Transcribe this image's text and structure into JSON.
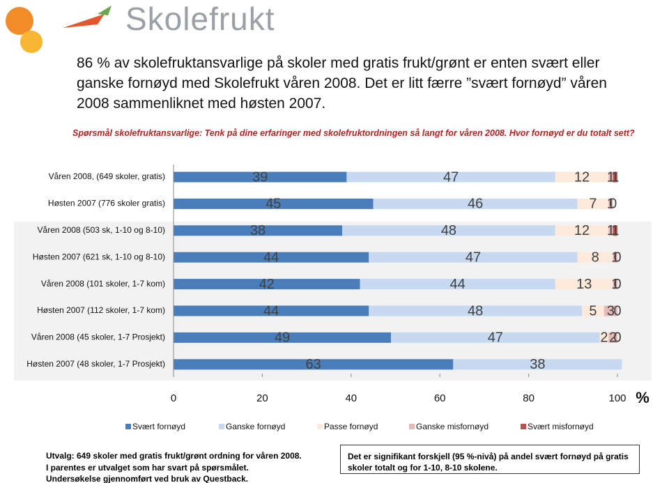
{
  "header": {
    "logo": "Skolefrukt"
  },
  "headline": "86 % av skolefruktansvarlige på skoler med gratis frukt/grønt er enten svært eller ganske fornøyd med Skolefrukt våren 2008. Det er litt færre ”svært fornøyd” våren 2008 sammenliknet med høsten 2007.",
  "question": "Spørsmål skolefruktansvarlige: Tenk på dine erfaringer med skolefruktordningen så langt for våren 2008. Hvor fornøyd er du totalt sett?",
  "chart_data": {
    "type": "stacked-barh",
    "categories": [
      "Våren 2008, (649 skoler, gratis)",
      "Høsten 2007 (776 skoler gratis)",
      "Våren 2008 (503 sk, 1-10 og 8-10)",
      "Høsten 2007 (621 sk, 1-10 og 8-10)",
      "Våren 2008 (101 skoler, 1-7 kom)",
      "Høsten 2007 (112 skoler, 1-7 kom)",
      "Våren 2008 (45 skoler, 1-7 Prosjekt)",
      "Høsten 2007 (48 skoler, 1-7 Prosjekt)"
    ],
    "series": [
      {
        "name": "Svært fornøyd",
        "color": "#4a7ebb",
        "values": [
          39,
          45,
          38,
          44,
          42,
          44,
          49,
          63
        ]
      },
      {
        "name": "Ganske fornøyd",
        "color": "#c6d9f1",
        "values": [
          47,
          46,
          48,
          47,
          44,
          48,
          47,
          38
        ]
      },
      {
        "name": "Passe fornøyd",
        "color": "#fdeada",
        "values": [
          12,
          7,
          12,
          8,
          13,
          5,
          2,
          null
        ]
      },
      {
        "name": "Ganske misfornøyd",
        "color": "#e6b9b8",
        "values": [
          1,
          1,
          1,
          1,
          1,
          3,
          2,
          null
        ]
      },
      {
        "name": "Svært misfornøyd",
        "color": "#c0504d",
        "values": [
          1,
          0,
          1,
          0,
          0,
          0,
          0,
          null
        ]
      }
    ],
    "xlim": [
      0,
      100
    ],
    "xticks": [
      0,
      20,
      40,
      60,
      80,
      100
    ],
    "x_unit": "%",
    "legend": "bottom"
  },
  "notes": {
    "left": [
      "Utvalg: 649 skoler med gratis frukt/grønt ordning for våren 2008.",
      "I parentes er utvalget som har svart på spørsmålet.",
      "Undersøkelse gjennomført ved bruk av Questback."
    ],
    "right": "Det er signifikant forskjell (95 %-nivå) på andel svært fornøyd på gratis skoler totalt og for 1-10, 8-10 skolene."
  }
}
